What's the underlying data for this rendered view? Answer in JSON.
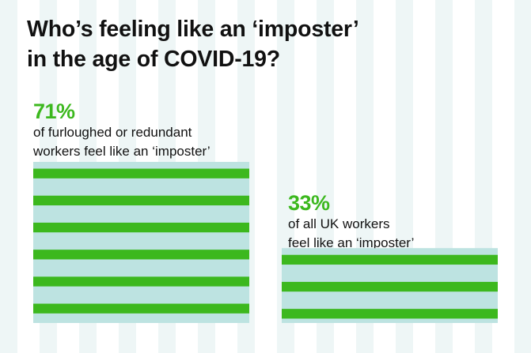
{
  "title_lines": [
    "Who’s feeling like an ‘imposter’",
    "in the age of COVID-19?"
  ],
  "colors": {
    "accent_green": "#3cb81e",
    "light_teal": "#bde3e1",
    "background_stripe": "#eef6f6",
    "text": "#111111"
  },
  "panels": [
    {
      "value_label": "71%",
      "description_lines": [
        "of furloughed or redundant",
        "workers feel like an ‘imposter’"
      ]
    },
    {
      "value_label": "33%",
      "description_lines": [
        "of all UK workers",
        "feel like an ‘imposter’"
      ]
    }
  ],
  "chart_data": {
    "type": "bar",
    "title": "Who’s feeling like an ‘imposter’ in the age of COVID-19?",
    "categories": [
      "of furloughed or redundant workers feel like an ‘imposter’",
      "of all UK workers feel like an ‘imposter’"
    ],
    "values": [
      71,
      33
    ],
    "value_labels": [
      "71%",
      "33%"
    ],
    "unit": "%",
    "ylim": [
      0,
      100
    ],
    "grid": false,
    "legend": "none"
  }
}
